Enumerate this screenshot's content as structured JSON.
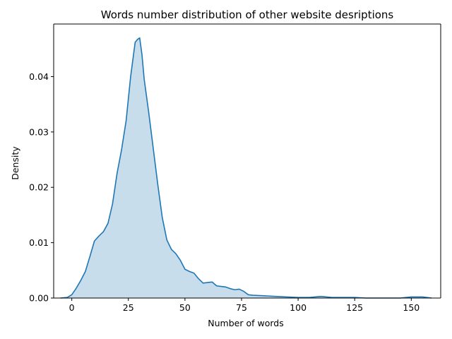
{
  "chart_data": {
    "type": "area",
    "title": "Words number distribution of other website desriptions",
    "xlabel": "Number of words",
    "ylabel": "Density",
    "xlim": [
      -8,
      163
    ],
    "ylim": [
      0,
      0.0495
    ],
    "xticks": [
      0,
      25,
      50,
      75,
      100,
      125,
      150
    ],
    "xtick_labels": [
      "0",
      "25",
      "50",
      "75",
      "100",
      "125",
      "150"
    ],
    "yticks": [
      0,
      0.01,
      0.02,
      0.03,
      0.04
    ],
    "ytick_labels": [
      "0.00",
      "0.01",
      "0.02",
      "0.03",
      "0.04"
    ],
    "grid": false,
    "colors": {
      "line": "#1f77b4",
      "fill": "#1f77b4"
    },
    "series": [
      {
        "name": "Density",
        "x": [
          -5,
          -2,
          0,
          2,
          4,
          6,
          8,
          10,
          12,
          14,
          16,
          18,
          20,
          22,
          24,
          26,
          28,
          29,
          30,
          31,
          32,
          34,
          36,
          38,
          40,
          42,
          44,
          46,
          48,
          50,
          52,
          54,
          56,
          58,
          60,
          62,
          64,
          66,
          68,
          70,
          72,
          74,
          76,
          78,
          80,
          85,
          90,
          95,
          100,
          105,
          110,
          115,
          120,
          125,
          130,
          135,
          140,
          145,
          150,
          155,
          159
        ],
        "y": [
          0.0,
          0.0001,
          0.0006,
          0.0018,
          0.0032,
          0.0048,
          0.0075,
          0.0103,
          0.0112,
          0.012,
          0.0135,
          0.017,
          0.0225,
          0.0268,
          0.032,
          0.04,
          0.0462,
          0.0467,
          0.047,
          0.044,
          0.0395,
          0.0335,
          0.027,
          0.0205,
          0.0145,
          0.0105,
          0.0088,
          0.008,
          0.0068,
          0.0052,
          0.0048,
          0.0045,
          0.0035,
          0.0027,
          0.0028,
          0.0029,
          0.0022,
          0.0021,
          0.002,
          0.0017,
          0.0015,
          0.0016,
          0.0012,
          0.0006,
          0.0005,
          0.0004,
          0.0003,
          0.0002,
          0.0001,
          0.0001,
          0.0003,
          0.0001,
          0.0001,
          0.0001,
          0.0,
          0.0,
          0.0,
          0.0,
          0.0002,
          0.0002,
          0.0
        ]
      }
    ]
  }
}
